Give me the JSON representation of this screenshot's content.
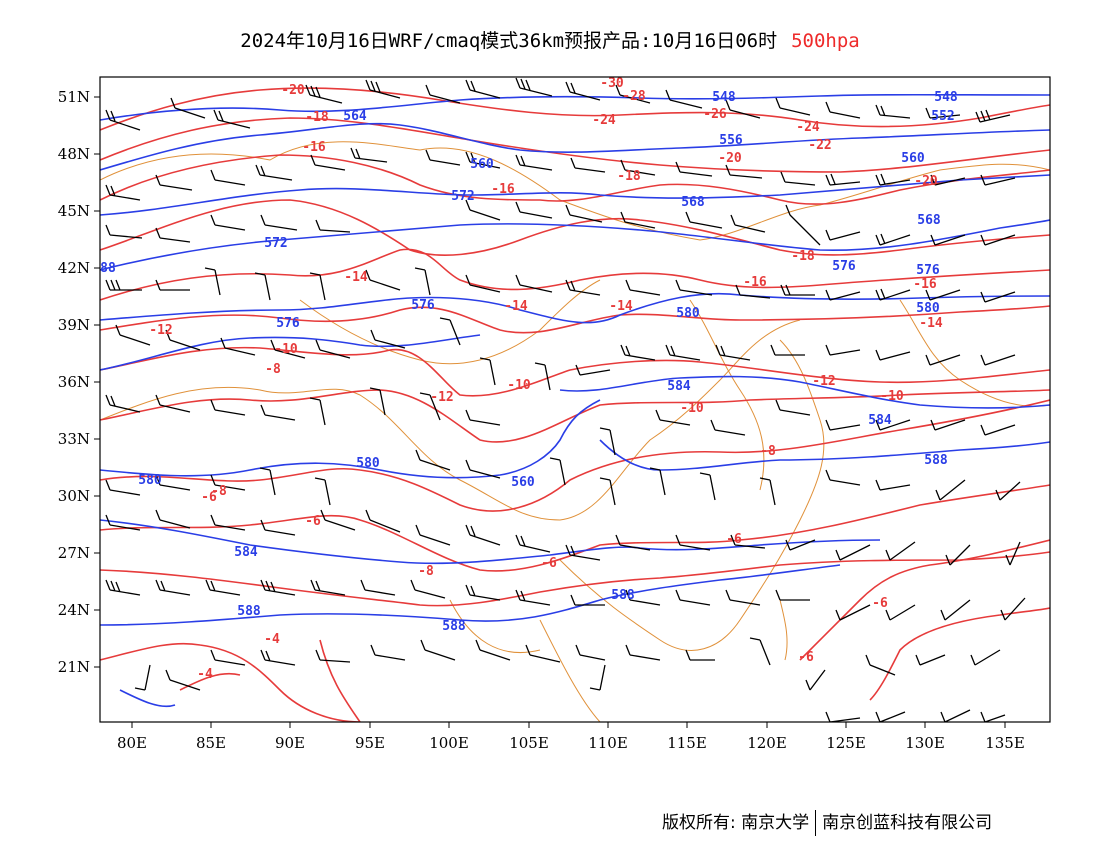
{
  "header": {
    "title": "2024年10月16日WRF/cmaq模式36km预报产品:10月16日06时",
    "level": "500hpa"
  },
  "colors": {
    "height_contour": "#2a3ee6",
    "temperature_contour": "#e63b3b",
    "border": "#e0913a",
    "wind_barb": "#000000"
  },
  "axes": {
    "lon_labels": [
      "80E",
      "85E",
      "90E",
      "95E",
      "100E",
      "105E",
      "110E",
      "115E",
      "120E",
      "125E",
      "130E",
      "135E"
    ],
    "lat_labels": [
      "51N",
      "48N",
      "45N",
      "42N",
      "39N",
      "36N",
      "33N",
      "30N",
      "27N",
      "24N",
      "21N"
    ]
  },
  "height_labels": [
    "548",
    "548",
    "552",
    "556",
    "564",
    "568",
    "568",
    "572",
    "572",
    "576",
    "576",
    "576",
    "576",
    "580",
    "580",
    "580",
    "580",
    "584",
    "584",
    "584",
    "588",
    "588",
    "588",
    "588",
    "560",
    "560",
    "560",
    "88"
  ],
  "temperature_labels": [
    "-30",
    "-28",
    "-26",
    "-24",
    "-24",
    "-22",
    "-20",
    "-20",
    "-20",
    "-18",
    "-18",
    "-18",
    "-16",
    "-16",
    "-16",
    "-16",
    "-14",
    "-14",
    "-14",
    "-14",
    "-12",
    "-12",
    "-12",
    "-10",
    "-10",
    "-10",
    "-10",
    "-8",
    "-8",
    "-8",
    "-8",
    "-6",
    "-6",
    "-6",
    "-6",
    "-6",
    "-6",
    "-4",
    "-4"
  ],
  "footer": {
    "left": "版权所有: 南京大学",
    "right": "南京创蓝科技有限公司"
  }
}
